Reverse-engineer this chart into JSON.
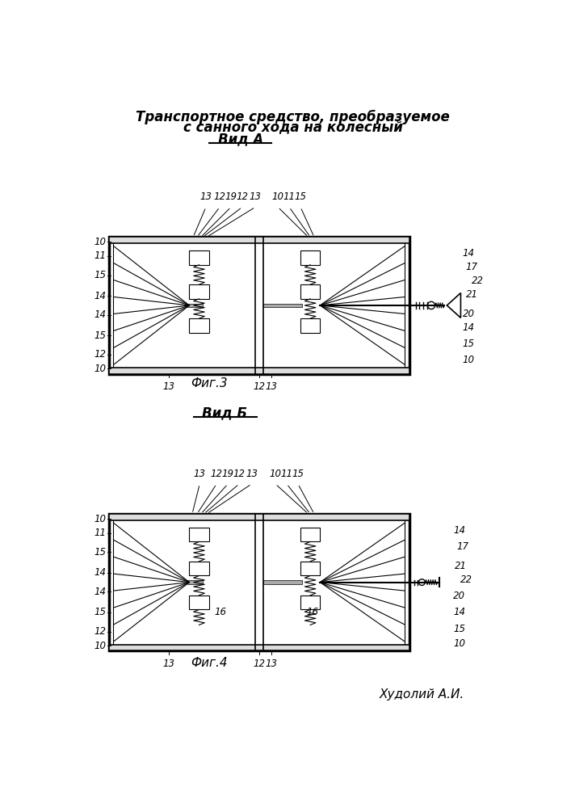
{
  "title_line1": "Транспортное средство, преобразуемое",
  "title_line2": "с санного хода на колесный",
  "view_a": "Вид А",
  "view_b": "Вид Б",
  "fig3": "Фиг.3",
  "fig4": "Фиг.4",
  "author": "Худолий А.И.",
  "bg_color": "#ffffff",
  "line_color": "#000000"
}
